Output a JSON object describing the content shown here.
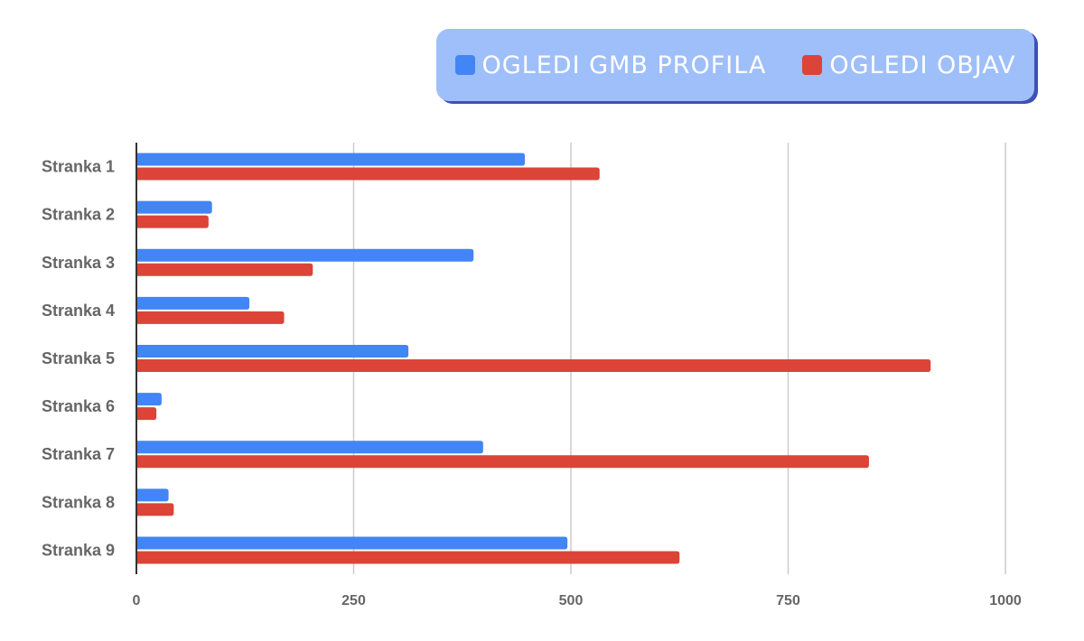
{
  "legend": {
    "items": [
      {
        "label": "OGLEDI GMB PROFILA",
        "color": "#4285f4"
      },
      {
        "label": "OGLEDI OBJAV",
        "color": "#db4437"
      }
    ],
    "background": "#9fbffa",
    "shadow": "#3f51b5"
  },
  "chart_data": {
    "type": "bar",
    "orientation": "horizontal",
    "categories": [
      "Stranka 1",
      "Stranka 2",
      "Stranka 3",
      "Stranka 4",
      "Stranka 5",
      "Stranka 6",
      "Stranka 7",
      "Stranka 8",
      "Stranka 9"
    ],
    "series": [
      {
        "name": "OGLEDI GMB PROFILA",
        "color": "#4285f4",
        "values": [
          447,
          87,
          388,
          130,
          313,
          29,
          399,
          37,
          496
        ]
      },
      {
        "name": "OGLEDI OBJAV",
        "color": "#db4437",
        "values": [
          533,
          83,
          203,
          170,
          914,
          23,
          843,
          43,
          625
        ]
      }
    ],
    "xlim": [
      0,
      1000
    ],
    "xticks": [
      "0",
      "250",
      "500",
      "750",
      "1000"
    ],
    "grid": true,
    "legend_position": "top-right",
    "title": "",
    "xlabel": "",
    "ylabel": ""
  }
}
